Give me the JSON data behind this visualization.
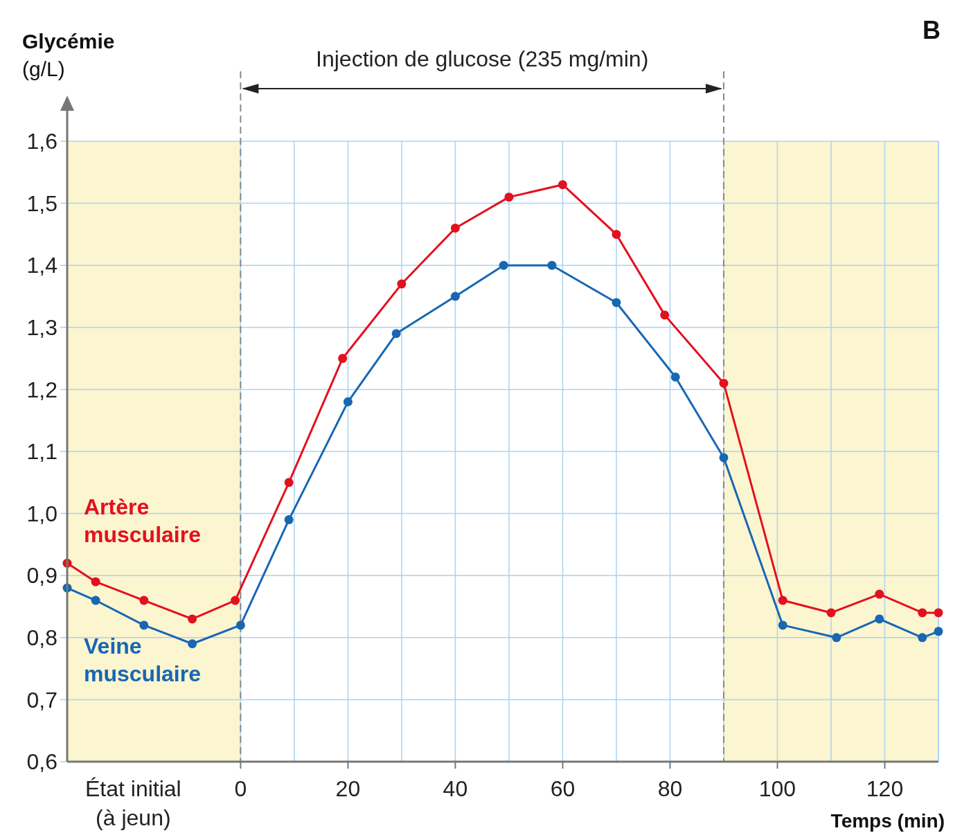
{
  "chart_data": {
    "type": "line",
    "xlabel": "Temps (min)",
    "ylabel": "Glycémie (g/L)",
    "xlim": [
      -32.3,
      130
    ],
    "ylim": [
      0.6,
      1.6
    ],
    "xticks": [
      {
        "value": -20,
        "label": "État initial\n(à jeun)"
      },
      0,
      20,
      40,
      60,
      80,
      100,
      120
    ],
    "yticks": [
      {
        "value": 0.6,
        "label": "0,6"
      },
      {
        "value": 0.7,
        "label": "0,7"
      },
      {
        "value": 0.8,
        "label": "0,8"
      },
      {
        "value": 0.9,
        "label": "0,9"
      },
      {
        "value": 1.0,
        "label": "1,0"
      },
      {
        "value": 1.1,
        "label": "1,1"
      },
      {
        "value": 1.2,
        "label": "1,2"
      },
      {
        "value": 1.3,
        "label": "1,3"
      },
      {
        "value": 1.4,
        "label": "1,4"
      },
      {
        "value": 1.5,
        "label": "1,5"
      },
      {
        "value": 1.6,
        "label": "1,6"
      }
    ],
    "grid": true,
    "legend": false,
    "marker": "circle",
    "line_style": "solid",
    "series": [
      {
        "name": "Artère musculaire",
        "color": "#e3101e",
        "x": [
          -32.3,
          -27,
          -18,
          -9,
          -1,
          9,
          19,
          30,
          40,
          50,
          60,
          70,
          79,
          90,
          101,
          110,
          119,
          127,
          130
        ],
        "values": [
          0.92,
          0.89,
          0.86,
          0.83,
          0.86,
          1.05,
          1.25,
          1.37,
          1.46,
          1.51,
          1.53,
          1.45,
          1.32,
          1.21,
          0.86,
          0.84,
          0.87,
          0.84,
          0.84
        ]
      },
      {
        "name": "Veine musculaire",
        "color": "#1767b3",
        "x": [
          -32.3,
          -27,
          -18,
          -9,
          0,
          9,
          20,
          29,
          40,
          49,
          58,
          70,
          81,
          90,
          101,
          111,
          119,
          127,
          130
        ],
        "values": [
          0.88,
          0.86,
          0.82,
          0.79,
          0.82,
          0.99,
          1.18,
          1.29,
          1.35,
          1.4,
          1.4,
          1.34,
          1.22,
          1.09,
          0.82,
          0.8,
          0.83,
          0.8,
          0.81
        ]
      }
    ],
    "bands": [
      {
        "axis": "x",
        "from": -32.3,
        "to": 0,
        "color": "#fbf5d0"
      },
      {
        "axis": "x",
        "from": 90,
        "to": 130,
        "color": "#fbf5d0"
      }
    ],
    "ref_lines": [
      {
        "axis": "x",
        "value": 0,
        "color": "#888888",
        "line_style": "dashed"
      },
      {
        "axis": "x",
        "value": 90,
        "color": "#888888",
        "line_style": "dashed"
      }
    ],
    "annotations": [
      "Injection de glucose (235 mg/min)",
      "B"
    ]
  }
}
